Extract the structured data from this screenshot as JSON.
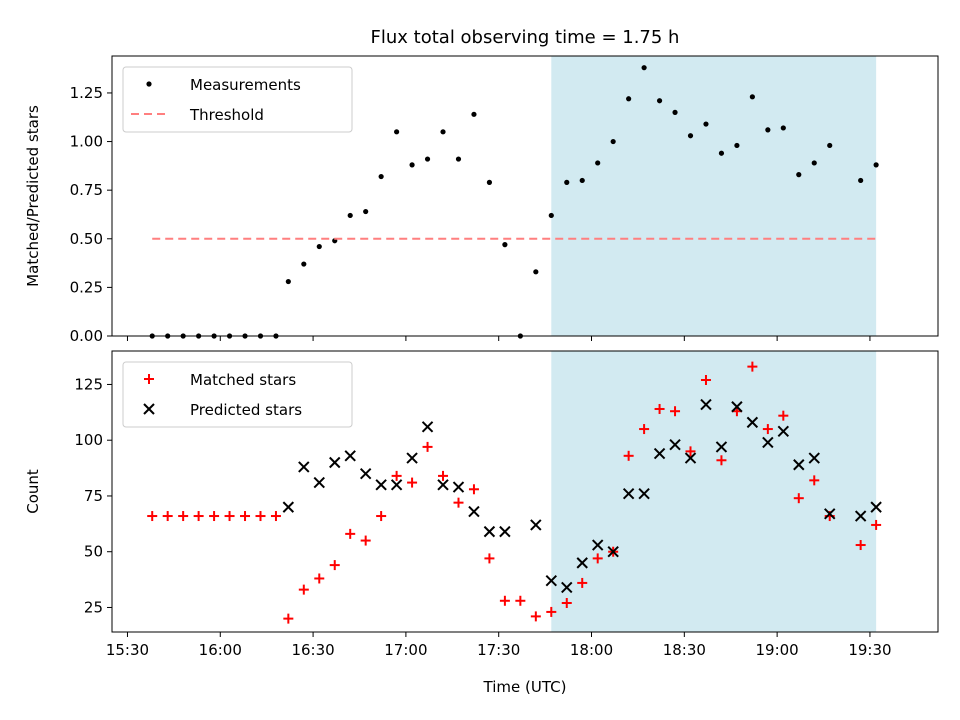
{
  "chart_data": [
    {
      "type": "scatter",
      "title": "Flux total observing time = 1.75 h",
      "ylabel": "Matched/Predicted stars",
      "xlabel": "",
      "xlim": [
        "15:25",
        "19:52"
      ],
      "ylim": [
        0,
        1.44
      ],
      "yticks": [
        0.0,
        0.25,
        0.5,
        0.75,
        1.0,
        1.25
      ],
      "ytick_labels": [
        "0.00",
        "0.25",
        "0.50",
        "0.75",
        "1.00",
        "1.25"
      ],
      "legend_position": "top-left",
      "shaded_region": {
        "x": [
          "17:47",
          "19:32"
        ],
        "color": "#add8e6"
      },
      "series": [
        {
          "name": "Measurements",
          "marker": "dot",
          "color": "#000000",
          "x": [
            "15:38",
            "15:43",
            "15:48",
            "15:53",
            "15:58",
            "16:03",
            "16:08",
            "16:13",
            "16:18",
            "16:22",
            "16:27",
            "16:32",
            "16:37",
            "16:42",
            "16:47",
            "16:52",
            "16:57",
            "17:02",
            "17:07",
            "17:12",
            "17:17",
            "17:22",
            "17:27",
            "17:32",
            "17:37",
            "17:42",
            "17:47",
            "17:52",
            "17:57",
            "18:02",
            "18:07",
            "18:12",
            "18:17",
            "18:22",
            "18:27",
            "18:32",
            "18:37",
            "18:42",
            "18:47",
            "18:52",
            "18:57",
            "19:02",
            "19:07",
            "19:12",
            "19:17",
            "19:27",
            "19:32"
          ],
          "y": [
            0,
            0,
            0,
            0,
            0,
            0,
            0,
            0,
            0,
            0.28,
            0.37,
            0.46,
            0.49,
            0.62,
            0.64,
            0.82,
            1.05,
            0.88,
            0.91,
            1.05,
            0.91,
            1.14,
            0.79,
            0.47,
            0.0,
            0.33,
            0.62,
            0.79,
            0.8,
            0.89,
            1.0,
            1.22,
            1.38,
            1.21,
            1.15,
            1.03,
            1.09,
            0.94,
            0.98,
            1.23,
            1.06,
            1.07,
            0.83,
            0.89,
            0.98,
            0.8,
            0.88
          ]
        },
        {
          "name": "Threshold",
          "marker": "dashed-line",
          "color": "#ff7f7f",
          "x": [
            "15:38",
            "19:32"
          ],
          "y": [
            0.5,
            0.5
          ]
        }
      ]
    },
    {
      "type": "scatter",
      "title": "",
      "ylabel": "Count",
      "xlabel": "Time (UTC)",
      "xlim": [
        "15:25",
        "19:52"
      ],
      "ylim": [
        14,
        140
      ],
      "yticks": [
        25,
        50,
        75,
        100,
        125
      ],
      "ytick_labels": [
        "25",
        "50",
        "75",
        "100",
        "125"
      ],
      "xticks": [
        "15:30",
        "16:00",
        "16:30",
        "17:00",
        "17:30",
        "18:00",
        "18:30",
        "19:00",
        "19:30"
      ],
      "legend_position": "top-left",
      "shaded_region": {
        "x": [
          "17:47",
          "19:32"
        ],
        "color": "#add8e6"
      },
      "series": [
        {
          "name": "Matched stars",
          "marker": "plus",
          "color": "#ff0000",
          "x": [
            "15:38",
            "15:43",
            "15:48",
            "15:53",
            "15:58",
            "16:03",
            "16:08",
            "16:13",
            "16:18",
            "16:22",
            "16:27",
            "16:32",
            "16:37",
            "16:42",
            "16:47",
            "16:52",
            "16:57",
            "17:02",
            "17:07",
            "17:12",
            "17:17",
            "17:22",
            "17:27",
            "17:32",
            "17:37",
            "17:42",
            "17:47",
            "17:52",
            "17:57",
            "18:02",
            "18:07",
            "18:12",
            "18:17",
            "18:22",
            "18:27",
            "18:32",
            "18:37",
            "18:42",
            "18:47",
            "18:52",
            "18:57",
            "19:02",
            "19:07",
            "19:12",
            "19:17",
            "19:27",
            "19:32"
          ],
          "y": [
            66,
            66,
            66,
            66,
            66,
            66,
            66,
            66,
            66,
            20,
            33,
            38,
            44,
            58,
            55,
            66,
            84,
            81,
            97,
            84,
            72,
            78,
            47,
            28,
            28,
            21,
            23,
            27,
            36,
            47,
            50,
            93,
            105,
            114,
            113,
            95,
            127,
            91,
            113,
            133,
            105,
            111,
            74,
            82,
            66,
            53,
            62
          ]
        },
        {
          "name": "Predicted stars",
          "marker": "x",
          "color": "#000000",
          "x": [
            "16:22",
            "16:27",
            "16:32",
            "16:37",
            "16:42",
            "16:47",
            "16:52",
            "16:57",
            "17:02",
            "17:07",
            "17:12",
            "17:17",
            "17:22",
            "17:27",
            "17:32",
            "17:42",
            "17:47",
            "17:52",
            "17:57",
            "18:02",
            "18:07",
            "18:12",
            "18:17",
            "18:22",
            "18:27",
            "18:32",
            "18:37",
            "18:42",
            "18:47",
            "18:52",
            "18:57",
            "19:02",
            "19:07",
            "19:12",
            "19:17",
            "19:27",
            "19:32"
          ],
          "y": [
            70,
            88,
            81,
            90,
            93,
            85,
            80,
            80,
            92,
            106,
            80,
            79,
            68,
            59,
            59,
            62,
            37,
            34,
            45,
            53,
            50,
            76,
            76,
            94,
            98,
            92,
            116,
            97,
            115,
            108,
            99,
            104,
            89,
            92,
            67,
            66,
            70
          ]
        }
      ]
    }
  ]
}
